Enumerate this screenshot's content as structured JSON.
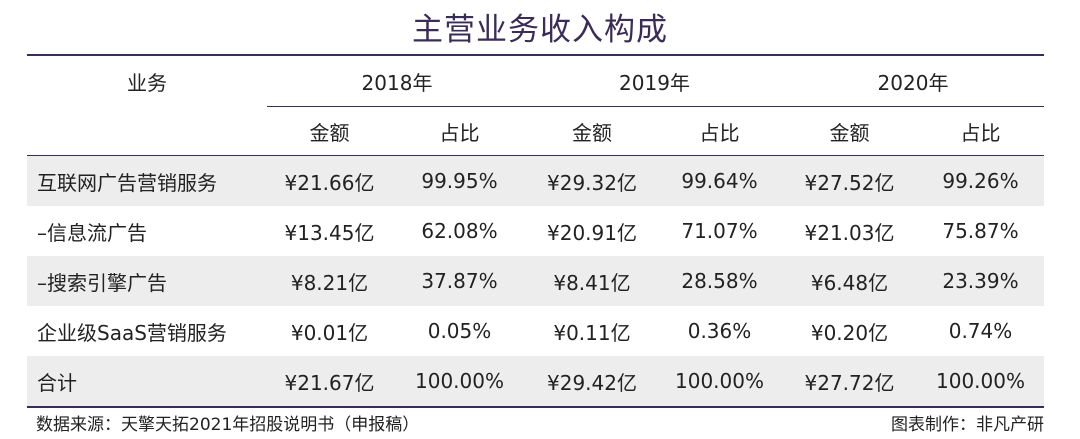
{
  "title": "主营业务收入构成",
  "header": {
    "business": "业务",
    "years": [
      "2018年",
      "2019年",
      "2020年"
    ],
    "amount": "金额",
    "share": "占比"
  },
  "rows": [
    {
      "name": "互联网广告营销服务",
      "v": [
        "¥21.66亿",
        "99.95%",
        "¥29.32亿",
        "99.64%",
        "¥27.52亿",
        "99.26%"
      ]
    },
    {
      "name": "–信息流广告",
      "v": [
        "¥13.45亿",
        "62.08%",
        "¥20.91亿",
        "71.07%",
        "¥21.03亿",
        "75.87%"
      ]
    },
    {
      "name": "–搜索引擎广告",
      "v": [
        "¥8.21亿",
        "37.87%",
        "¥8.41亿",
        "28.58%",
        "¥6.48亿",
        "23.39%"
      ]
    },
    {
      "name": "企业级SaaS营销服务",
      "v": [
        "¥0.01亿",
        "0.05%",
        "¥0.11亿",
        "0.36%",
        "¥0.20亿",
        "0.74%"
      ]
    },
    {
      "name": "合计",
      "v": [
        "¥21.67亿",
        "100.00%",
        "¥29.42亿",
        "100.00%",
        "¥27.72亿",
        "100.00%"
      ]
    }
  ],
  "footer": {
    "source": "数据来源：天擎天拓2021年招股说明书（申报稿）",
    "credit": "图表制作：非凡产研"
  }
}
